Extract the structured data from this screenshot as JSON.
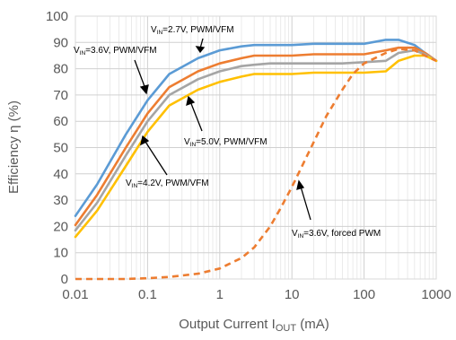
{
  "chart_data": {
    "type": "line",
    "x_scale": "log",
    "xlim": [
      0.01,
      1000
    ],
    "ylim": [
      0,
      100
    ],
    "grid": true,
    "xlabel": {
      "main": "Output Current I",
      "sub": "OUT",
      "unit": " (mA)"
    },
    "ylabel": "Efficiency η (%)",
    "x_ticks": [
      {
        "value": 0.01,
        "label": "0.01"
      },
      {
        "value": 0.1,
        "label": "0.1"
      },
      {
        "value": 1,
        "label": "1"
      },
      {
        "value": 10,
        "label": "10"
      },
      {
        "value": 100,
        "label": "100"
      },
      {
        "value": 1000,
        "label": "1000"
      }
    ],
    "y_ticks": [
      {
        "value": 0,
        "label": "0"
      },
      {
        "value": 10,
        "label": "10"
      },
      {
        "value": 20,
        "label": "20"
      },
      {
        "value": 30,
        "label": "30"
      },
      {
        "value": 40,
        "label": "40"
      },
      {
        "value": 50,
        "label": "50"
      },
      {
        "value": 60,
        "label": "60"
      },
      {
        "value": 70,
        "label": "70"
      },
      {
        "value": 80,
        "label": "80"
      },
      {
        "value": 90,
        "label": "90"
      },
      {
        "value": 100,
        "label": "100"
      }
    ],
    "series": [
      {
        "color": "#5B9BD5",
        "dashed": false,
        "points": [
          [
            0.01,
            24
          ],
          [
            0.02,
            36
          ],
          [
            0.05,
            55
          ],
          [
            0.1,
            68
          ],
          [
            0.2,
            78
          ],
          [
            0.5,
            84
          ],
          [
            1,
            87
          ],
          [
            2,
            88.5
          ],
          [
            3,
            89
          ],
          [
            5,
            89
          ],
          [
            10,
            89
          ],
          [
            20,
            89.5
          ],
          [
            50,
            89.5
          ],
          [
            100,
            89.5
          ],
          [
            200,
            91
          ],
          [
            300,
            91
          ],
          [
            500,
            89
          ],
          [
            700,
            86
          ],
          [
            1000,
            83
          ]
        ]
      },
      {
        "color": "#ED7D31",
        "dashed": false,
        "points": [
          [
            0.01,
            20.5
          ],
          [
            0.02,
            32
          ],
          [
            0.05,
            50
          ],
          [
            0.1,
            63
          ],
          [
            0.2,
            73
          ],
          [
            0.5,
            79
          ],
          [
            1,
            82
          ],
          [
            2,
            84
          ],
          [
            3,
            85
          ],
          [
            5,
            85
          ],
          [
            10,
            85
          ],
          [
            20,
            85.5
          ],
          [
            50,
            85.5
          ],
          [
            100,
            85.5
          ],
          [
            200,
            87
          ],
          [
            300,
            88
          ],
          [
            500,
            88
          ],
          [
            700,
            86
          ],
          [
            1000,
            83
          ]
        ]
      },
      {
        "color": "#A5A5A5",
        "dashed": false,
        "points": [
          [
            0.01,
            18.5
          ],
          [
            0.02,
            29
          ],
          [
            0.05,
            47
          ],
          [
            0.1,
            60
          ],
          [
            0.2,
            70
          ],
          [
            0.5,
            76
          ],
          [
            1,
            79
          ],
          [
            2,
            81
          ],
          [
            3,
            81.5
          ],
          [
            5,
            82
          ],
          [
            10,
            82
          ],
          [
            20,
            82
          ],
          [
            50,
            82
          ],
          [
            100,
            82.5
          ],
          [
            200,
            83
          ],
          [
            300,
            86
          ],
          [
            500,
            87
          ],
          [
            700,
            85.5
          ],
          [
            1000,
            83
          ]
        ]
      },
      {
        "color": "#FFC000",
        "dashed": false,
        "points": [
          [
            0.01,
            16
          ],
          [
            0.02,
            26
          ],
          [
            0.05,
            43
          ],
          [
            0.1,
            56
          ],
          [
            0.2,
            66
          ],
          [
            0.5,
            72
          ],
          [
            1,
            75
          ],
          [
            2,
            77
          ],
          [
            3,
            78
          ],
          [
            5,
            78
          ],
          [
            10,
            78
          ],
          [
            20,
            78.5
          ],
          [
            50,
            78.5
          ],
          [
            100,
            78.5
          ],
          [
            200,
            79
          ],
          [
            300,
            83
          ],
          [
            500,
            85
          ],
          [
            700,
            85
          ],
          [
            1000,
            83
          ]
        ]
      },
      {
        "color": "#ED7D31",
        "dashed": true,
        "points": [
          [
            0.01,
            0
          ],
          [
            0.05,
            0
          ],
          [
            0.1,
            0.3
          ],
          [
            0.2,
            0.8
          ],
          [
            0.5,
            2
          ],
          [
            1,
            4
          ],
          [
            2,
            8
          ],
          [
            3,
            12
          ],
          [
            5,
            20
          ],
          [
            7,
            27
          ],
          [
            10,
            35
          ],
          [
            20,
            52
          ],
          [
            30,
            62
          ],
          [
            50,
            72
          ],
          [
            70,
            78
          ],
          [
            100,
            82
          ],
          [
            200,
            86
          ],
          [
            300,
            87.5
          ],
          [
            500,
            87
          ],
          [
            700,
            85
          ],
          [
            1000,
            83
          ]
        ]
      }
    ],
    "annotations": [
      {
        "prefix": "V",
        "sub": "IN",
        "rest": "=2.7V, PWM/VFM"
      },
      {
        "prefix": "V",
        "sub": "IN",
        "rest": "=3.6V, PWM/VFM"
      },
      {
        "prefix": "V",
        "sub": "IN",
        "rest": "=5.0V, PWM/VFM"
      },
      {
        "prefix": "V",
        "sub": "IN",
        "rest": "=4.2V, PWM/VFM"
      },
      {
        "prefix": "V",
        "sub": "IN",
        "rest": "=3.6V, forced PWM"
      }
    ]
  }
}
